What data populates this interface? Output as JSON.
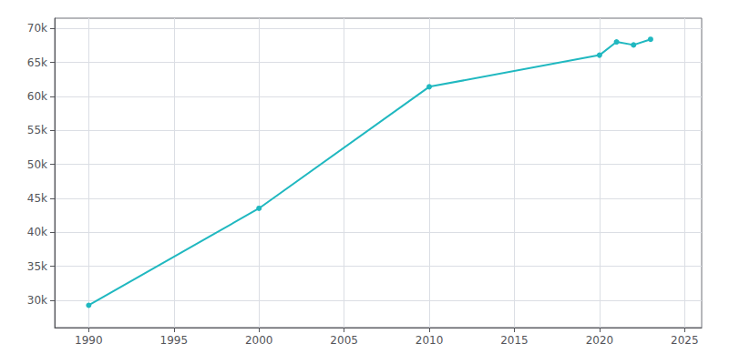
{
  "chart_data": {
    "type": "line",
    "x": [
      1990,
      2000,
      2010,
      2020,
      2021,
      2022,
      2023
    ],
    "values": [
      29281,
      43538,
      61416,
      66066,
      68012,
      67567,
      68394
    ],
    "color": "#20B8C0",
    "marker": "circle",
    "xlim": [
      1988,
      2026
    ],
    "xticks": [
      1990,
      1995,
      2000,
      2005,
      2010,
      2015,
      2020,
      2025
    ],
    "ylim": [
      26000,
      71500
    ],
    "yticks": [
      {
        "value": 30000,
        "label": "30k"
      },
      {
        "value": 35000,
        "label": "35k"
      },
      {
        "value": 40000,
        "label": "40k"
      },
      {
        "value": 45000,
        "label": "45k"
      },
      {
        "value": 50000,
        "label": "50k"
      },
      {
        "value": 55000,
        "label": "55k"
      },
      {
        "value": 60000,
        "label": "60k"
      },
      {
        "value": 65000,
        "label": "65k"
      },
      {
        "value": 70000,
        "label": "70k"
      }
    ],
    "grid": true
  }
}
